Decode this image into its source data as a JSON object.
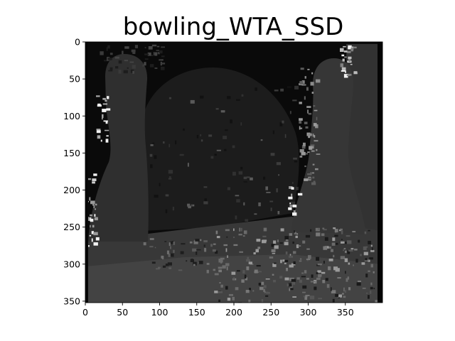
{
  "figure": {
    "title": "bowling_WTA_SSD"
  },
  "axes": {
    "xlim": [
      0,
      400
    ],
    "ylim": [
      352,
      0
    ],
    "xticks": [
      0,
      50,
      100,
      150,
      200,
      250,
      300,
      350
    ],
    "yticks": [
      0,
      50,
      100,
      150,
      200,
      250,
      300,
      350
    ],
    "grid": false
  },
  "image": {
    "kind": "grayscale disparity map",
    "colors": {
      "background": "#0a0a0a",
      "left_pin": "#2f2f2f",
      "ball": "#1c1c1c",
      "right_pin": "#363636",
      "right_panel": "#333333",
      "floor_back": "#3a3a3a",
      "floor_front": "#444444",
      "noise_light": "#9a9a9a",
      "noise_white": "#f2f2f2"
    }
  }
}
